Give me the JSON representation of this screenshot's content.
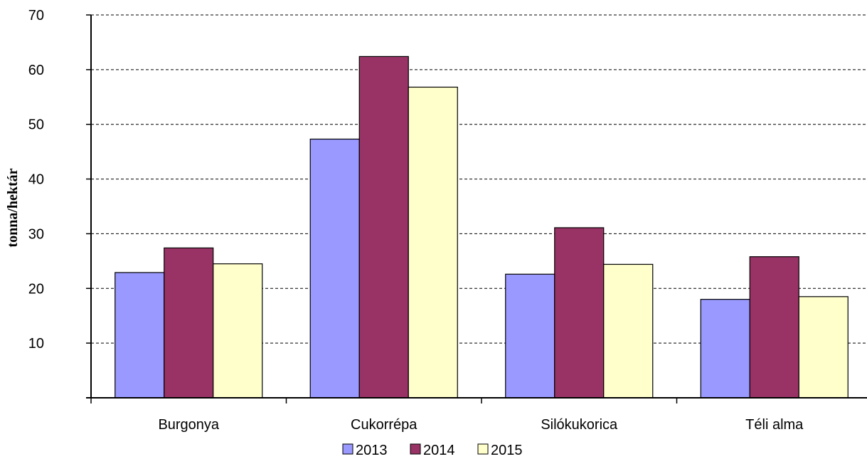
{
  "chart_data": {
    "type": "bar",
    "title": "",
    "xlabel": "",
    "ylabel": "tonna/hektár",
    "ylim": [
      0,
      70
    ],
    "yticks": [
      10,
      20,
      30,
      40,
      50,
      60,
      70
    ],
    "grid": "horizontal dashed",
    "legend_position": "bottom",
    "categories": [
      "Burgonya",
      "Cukorrépa",
      "Silókukorica",
      "Téli alma"
    ],
    "series": [
      {
        "name": "2013",
        "color": "#9999ff",
        "values": [
          22.9,
          47.3,
          22.6,
          18.0
        ]
      },
      {
        "name": "2014",
        "color": "#993366",
        "values": [
          27.4,
          62.4,
          31.1,
          25.8
        ]
      },
      {
        "name": "2015",
        "color": "#ffffcc",
        "values": [
          24.5,
          56.8,
          24.4,
          18.5
        ]
      }
    ]
  }
}
